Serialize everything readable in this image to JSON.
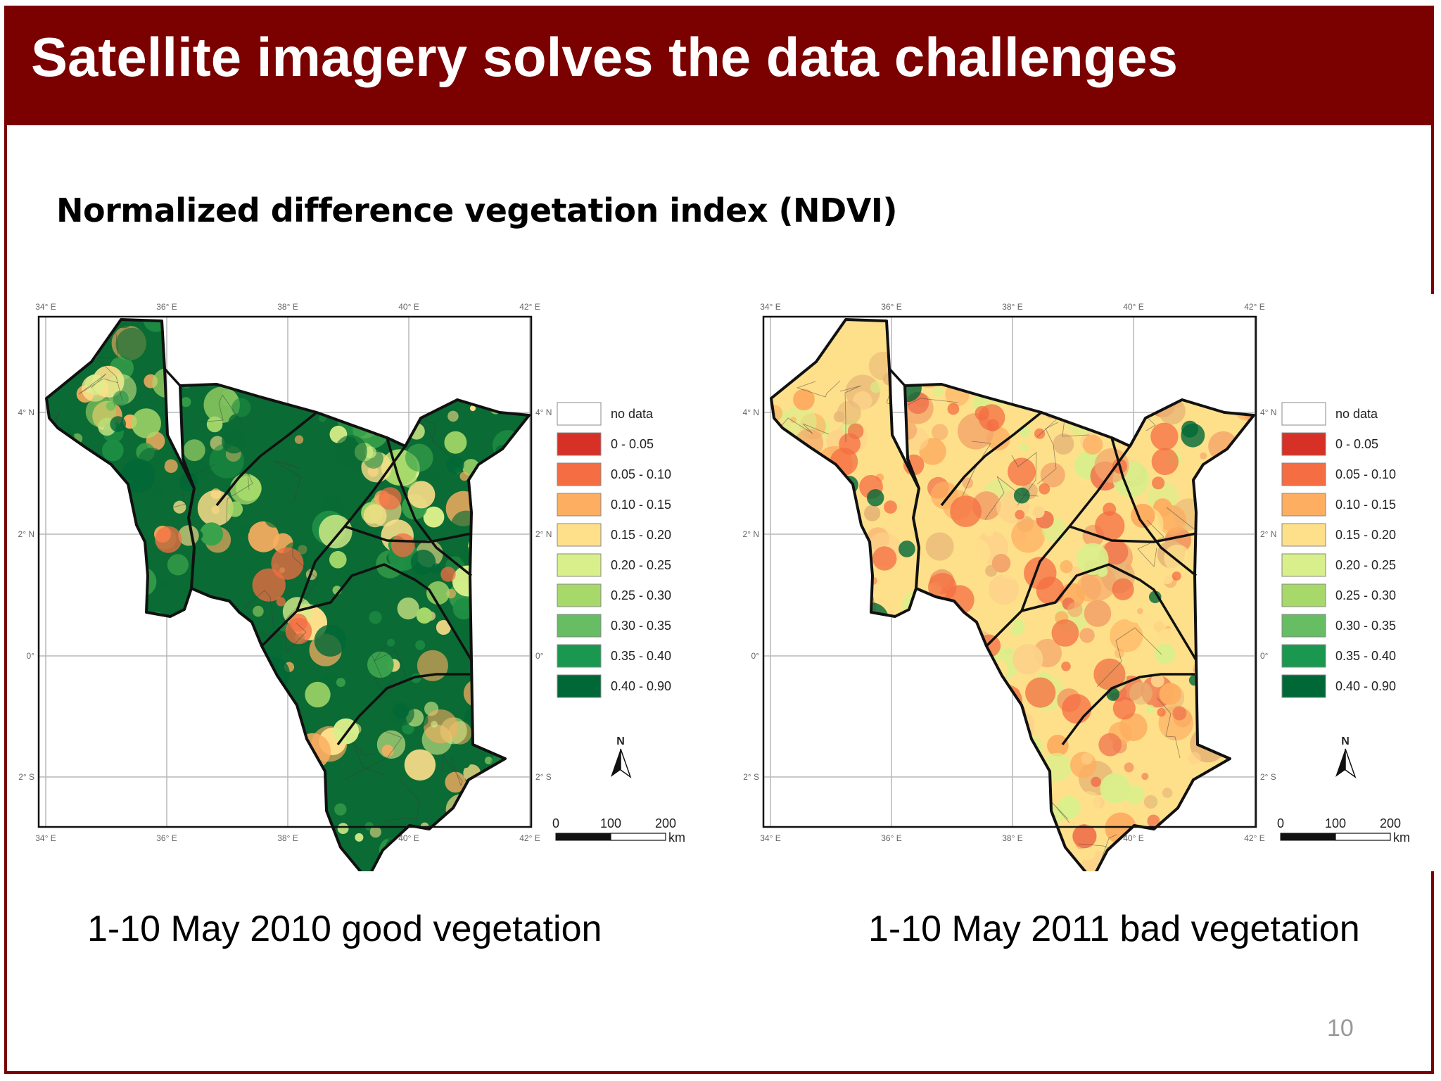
{
  "slide": {
    "title": "Satellite imagery solves the data challenges",
    "subtitle": "Normalized difference vegetation index (NDVI)",
    "page_number": "10",
    "colors": {
      "title_bar": "#7b0000",
      "title_text": "#ffffff"
    }
  },
  "maps": [
    {
      "caption": "1-10 May 2010 good vegetation",
      "palette": [
        "#0a6b34",
        "#1f8e44",
        "#3aa24b",
        "#a6d96a",
        "#d9ef8b",
        "#fee08b",
        "#fdae61"
      ],
      "orange_count": 14,
      "green_count": 26
    },
    {
      "caption": "1-10 May 2011 bad vegetation",
      "palette": [
        "#fee08b",
        "#fdd28a",
        "#f4a66b",
        "#fdae61",
        "#e8b777",
        "#d9ef8b",
        "#f07850"
      ],
      "orange_count": 40,
      "green_count": 12
    }
  ],
  "axes": {
    "lon_labels": [
      "34° E",
      "36° E",
      "38° E",
      "40° E",
      "42° E"
    ],
    "lat_labels": [
      "4° N",
      "2° N",
      "0°",
      "2° S"
    ]
  },
  "legend": {
    "items": [
      {
        "label": "no data",
        "color": "#ffffff"
      },
      {
        "label": "0 - 0.05",
        "color": "#d73027"
      },
      {
        "label": "0.05 - 0.10",
        "color": "#f46d43"
      },
      {
        "label": "0.10 - 0.15",
        "color": "#fdae61"
      },
      {
        "label": "0.15 - 0.20",
        "color": "#fee08b"
      },
      {
        "label": "0.20 - 0.25",
        "color": "#d9ef8b"
      },
      {
        "label": "0.25 - 0.30",
        "color": "#a6d96a"
      },
      {
        "label": "0.30 - 0.35",
        "color": "#66bd63"
      },
      {
        "label": "0.35 - 0.40",
        "color": "#1a9850"
      },
      {
        "label": "0.40 - 0.90",
        "color": "#006837"
      }
    ]
  },
  "north_arrow": {
    "label": "N"
  },
  "scale_bar": {
    "ticks": [
      "0",
      "100",
      "200"
    ],
    "unit": "km"
  }
}
